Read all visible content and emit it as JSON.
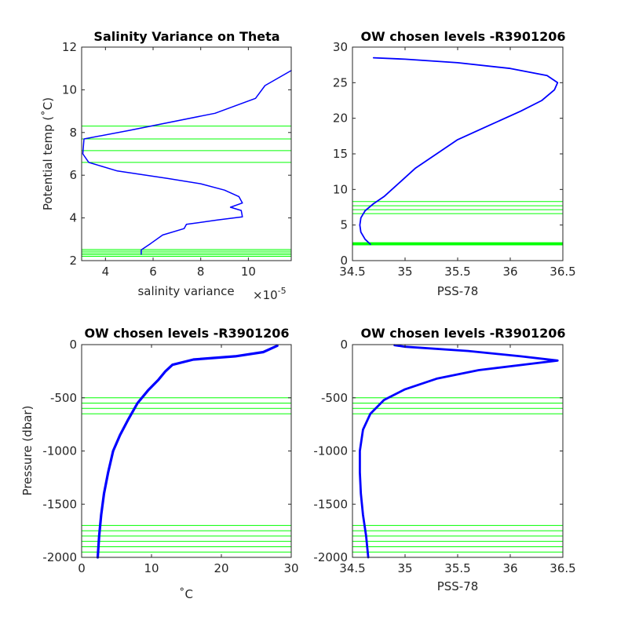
{
  "colors": {
    "profile": "#0000ff",
    "levels": "#00ff00",
    "axis": "#262626"
  },
  "chart_data": [
    {
      "type": "line",
      "title": "Salinity Variance on Theta",
      "xlabel": "salinity variance",
      "xexponent_base": "×10",
      "xexponent_power": "-5",
      "ylabel": "Potential temp (˚C)",
      "xlim": [
        3,
        11.8
      ],
      "ylim": [
        2,
        12
      ],
      "xticks": [
        4,
        6,
        8,
        10
      ],
      "yticks": [
        2,
        4,
        6,
        8,
        10,
        12
      ],
      "series": [
        {
          "x": [
            5.5,
            5.5,
            5.9,
            6.4,
            7.3,
            7.4,
            8.7,
            9.75,
            9.7,
            9.25,
            9.75,
            9.6,
            9.0,
            8.0,
            6.6,
            4.5,
            3.3,
            3.05,
            3.1,
            5.0,
            8.6,
            10.3,
            10.7,
            11.8
          ],
          "y": [
            2.3,
            2.5,
            2.8,
            3.2,
            3.5,
            3.7,
            3.9,
            4.05,
            4.35,
            4.5,
            4.7,
            5.0,
            5.3,
            5.6,
            5.85,
            6.2,
            6.6,
            7.0,
            7.7,
            8.1,
            8.9,
            9.6,
            10.2,
            10.9
          ]
        }
      ],
      "hlines": [
        2.2,
        2.28,
        2.36,
        2.44,
        2.52,
        6.6,
        7.15,
        7.7,
        8.3
      ]
    },
    {
      "type": "line",
      "title": "OW chosen levels -R3901206",
      "xlabel": "PSS-78",
      "ylabel": "",
      "xlim": [
        34.5,
        36.5
      ],
      "ylim": [
        0,
        30
      ],
      "xticks": [
        34.5,
        35,
        35.5,
        36,
        36.5
      ],
      "yticks": [
        0,
        5,
        10,
        15,
        20,
        25,
        30
      ],
      "series": [
        {
          "x": [
            34.67,
            34.62,
            34.58,
            34.57,
            34.58,
            34.62,
            34.7,
            34.8,
            34.95,
            35.1,
            35.3,
            35.5,
            35.8,
            36.1,
            36.3,
            36.42,
            36.45,
            36.35,
            36.0,
            35.5,
            35.0,
            34.7
          ],
          "y": [
            2.3,
            3.0,
            4.0,
            5.0,
            6.0,
            7.0,
            8.0,
            9.0,
            11.0,
            13.0,
            15.0,
            17.0,
            19.0,
            21.0,
            22.5,
            24.0,
            25.0,
            26.0,
            27.0,
            27.8,
            28.3,
            28.5
          ]
        }
      ],
      "hlines": [
        2.2,
        2.28,
        2.36,
        2.44,
        2.52,
        6.6,
        7.15,
        7.7,
        8.3
      ]
    },
    {
      "type": "line",
      "title": "OW chosen levels -R3901206",
      "xlabel": "˚C",
      "ylabel": "Pressure (dbar)",
      "xlim": [
        0,
        30
      ],
      "ylim": [
        -2000,
        0
      ],
      "xticks": [
        0,
        10,
        20,
        30
      ],
      "yticks": [
        -2000,
        -1500,
        -1000,
        -500,
        0
      ],
      "series": [
        {
          "x": [
            2.3,
            2.5,
            2.8,
            3.2,
            3.8,
            4.5,
            5.5,
            6.7,
            8.0,
            9.5,
            11.0,
            12.0,
            13.0,
            16.0,
            22.0,
            26.0,
            28.0
          ],
          "y": [
            -2000,
            -1800,
            -1600,
            -1400,
            -1200,
            -1000,
            -850,
            -700,
            -550,
            -430,
            -330,
            -250,
            -190,
            -140,
            -110,
            -70,
            -10
          ]
        }
      ],
      "hlines": [
        -1700,
        -1750,
        -1800,
        -1850,
        -1900,
        -1950,
        -500,
        -550,
        -600,
        -650
      ]
    },
    {
      "type": "line",
      "title": "OW chosen levels -R3901206",
      "xlabel": "PSS-78",
      "ylabel": "",
      "xlim": [
        34.5,
        36.5
      ],
      "ylim": [
        -2000,
        0
      ],
      "xticks": [
        34.5,
        35,
        35.5,
        36,
        36.5
      ],
      "yticks": [
        -2000,
        -1500,
        -1000,
        -500,
        0
      ],
      "series": [
        {
          "x": [
            34.65,
            34.63,
            34.6,
            34.58,
            34.57,
            34.57,
            34.6,
            34.67,
            34.8,
            35.0,
            35.3,
            35.7,
            36.2,
            36.45,
            36.1,
            35.6,
            35.0,
            34.9
          ],
          "y": [
            -2000,
            -1800,
            -1600,
            -1400,
            -1200,
            -1000,
            -800,
            -650,
            -520,
            -420,
            -320,
            -240,
            -180,
            -150,
            -110,
            -60,
            -20,
            -5
          ]
        }
      ],
      "hlines": [
        -1700,
        -1750,
        -1800,
        -1850,
        -1900,
        -1950,
        -500,
        -550,
        -600,
        -650
      ]
    }
  ]
}
